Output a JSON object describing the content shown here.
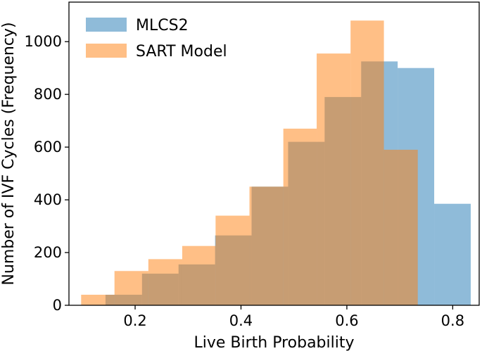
{
  "chart_data": {
    "type": "histogram",
    "title": "",
    "xlabel": "Live Birth Probability",
    "ylabel": "Number of IVF Cycles (Frequency)",
    "xlim": [
      0.075,
      0.85
    ],
    "ylim": [
      0,
      1150
    ],
    "xticks": [
      0.2,
      0.4,
      0.6,
      0.8
    ],
    "xtick_labels": [
      "0.2",
      "0.4",
      "0.6",
      "0.8"
    ],
    "yticks": [
      0,
      200,
      400,
      600,
      800,
      1000
    ],
    "ytick_labels": [
      "0",
      "200",
      "400",
      "600",
      "800",
      "1000"
    ],
    "grid": false,
    "legend": "top-left",
    "series": [
      {
        "name": "MLCS2",
        "color": "#1f77b4",
        "alpha": 0.5,
        "bins": [
          {
            "x0": 0.144,
            "x1": 0.213,
            "count": 40
          },
          {
            "x0": 0.213,
            "x1": 0.282,
            "count": 120
          },
          {
            "x0": 0.282,
            "x1": 0.351,
            "count": 155
          },
          {
            "x0": 0.351,
            "x1": 0.42,
            "count": 265
          },
          {
            "x0": 0.42,
            "x1": 0.489,
            "count": 450
          },
          {
            "x0": 0.489,
            "x1": 0.558,
            "count": 620
          },
          {
            "x0": 0.558,
            "x1": 0.627,
            "count": 790
          },
          {
            "x0": 0.627,
            "x1": 0.696,
            "count": 925
          },
          {
            "x0": 0.696,
            "x1": 0.765,
            "count": 900
          },
          {
            "x0": 0.765,
            "x1": 0.834,
            "count": 385
          }
        ]
      },
      {
        "name": "SART Model",
        "color": "#ff7f0e",
        "alpha": 0.5,
        "bins": [
          {
            "x0": 0.098,
            "x1": 0.161,
            "count": 40
          },
          {
            "x0": 0.161,
            "x1": 0.225,
            "count": 130
          },
          {
            "x0": 0.225,
            "x1": 0.289,
            "count": 175
          },
          {
            "x0": 0.289,
            "x1": 0.352,
            "count": 225
          },
          {
            "x0": 0.352,
            "x1": 0.416,
            "count": 340
          },
          {
            "x0": 0.416,
            "x1": 0.48,
            "count": 450
          },
          {
            "x0": 0.48,
            "x1": 0.543,
            "count": 670
          },
          {
            "x0": 0.543,
            "x1": 0.607,
            "count": 955
          },
          {
            "x0": 0.607,
            "x1": 0.67,
            "count": 1080
          },
          {
            "x0": 0.67,
            "x1": 0.734,
            "count": 590
          }
        ]
      }
    ]
  }
}
